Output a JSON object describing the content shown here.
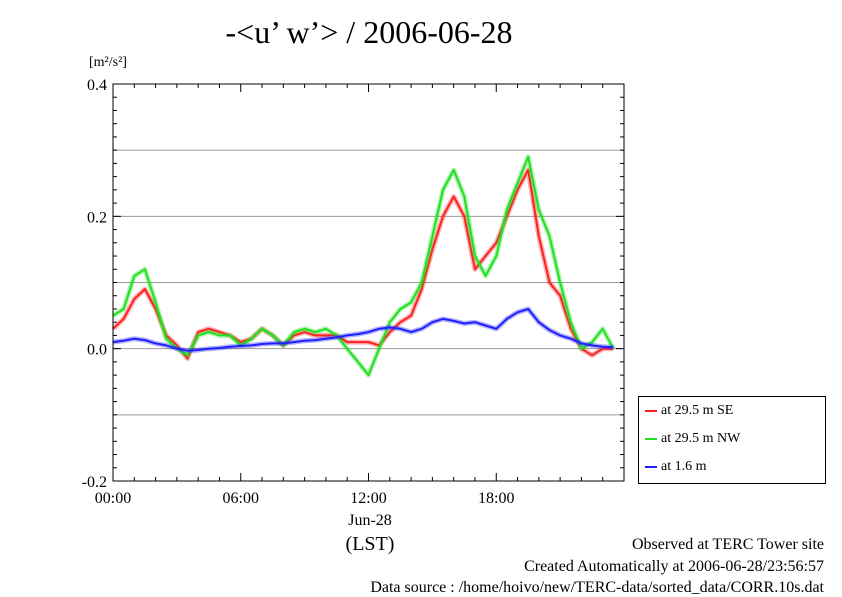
{
  "title": "-<u’ w’> / 2006-06-28",
  "unit_label": "[m²/s²]",
  "footer": {
    "line1": "Observed at TERC Tower site",
    "line2": "Created Automatically at 2006-06-28/23:56:57",
    "line3": "Data source : /home/hoivo/new/TERC-data/sorted_data/CORR.10s.dat"
  },
  "x_sublabels": {
    "date": "Jun-28",
    "tz": "(LST)"
  },
  "chart_data": {
    "type": "line",
    "title": "-<u’ w’> / 2006-06-28",
    "ylabel": "[m²/s²]",
    "xlabel": "(LST)",
    "xlim": [
      0,
      24
    ],
    "ylim": [
      -0.2,
      0.4
    ],
    "x_ticks": [
      0,
      6,
      12,
      18
    ],
    "x_tick_labels": [
      "00:00",
      "06:00",
      "12:00",
      "18:00"
    ],
    "y_ticks": [
      -0.2,
      0.0,
      0.2,
      0.4
    ],
    "y_tick_labels": [
      "-0.2",
      "0.0",
      "0.2",
      "0.4"
    ],
    "grid": "horizontal",
    "legend_position": "bottom-right outside",
    "series": [
      {
        "name": "at 29.5 m SE",
        "color": "#ff2020",
        "x": [
          0,
          0.5,
          1,
          1.5,
          2,
          2.5,
          3,
          3.5,
          4,
          4.5,
          5,
          5.5,
          6,
          6.5,
          7,
          7.5,
          8,
          8.5,
          9,
          9.5,
          10,
          10.5,
          11,
          11.5,
          12,
          12.5,
          13,
          13.5,
          14,
          14.5,
          15,
          15.5,
          16,
          16.5,
          17,
          17.5,
          18,
          18.5,
          19,
          19.5,
          20,
          20.5,
          21,
          21.5,
          22,
          22.5,
          23,
          23.5
        ],
        "y": [
          0.03,
          0.045,
          0.075,
          0.09,
          0.06,
          0.02,
          0.005,
          -0.015,
          0.025,
          0.03,
          0.025,
          0.02,
          0.01,
          0.015,
          0.03,
          0.02,
          0.005,
          0.02,
          0.025,
          0.02,
          0.02,
          0.02,
          0.01,
          0.01,
          0.01,
          0.005,
          0.025,
          0.04,
          0.05,
          0.09,
          0.15,
          0.2,
          0.23,
          0.2,
          0.12,
          0.14,
          0.16,
          0.2,
          0.24,
          0.27,
          0.17,
          0.1,
          0.08,
          0.03,
          0.0,
          -0.01,
          0.0,
          0.0
        ]
      },
      {
        "name": "at 29.5 m NW",
        "color": "#20e020",
        "x": [
          0,
          0.5,
          1,
          1.5,
          2,
          2.5,
          3,
          3.5,
          4,
          4.5,
          5,
          5.5,
          6,
          6.5,
          7,
          7.5,
          8,
          8.5,
          9,
          9.5,
          10,
          10.5,
          11,
          11.5,
          12,
          12.5,
          13,
          13.5,
          14,
          14.5,
          15,
          15.5,
          16,
          16.5,
          17,
          17.5,
          18,
          18.5,
          19,
          19.5,
          20,
          20.5,
          21,
          21.5,
          22,
          22.5,
          23,
          23.5
        ],
        "y": [
          0.05,
          0.06,
          0.11,
          0.12,
          0.07,
          0.015,
          0.0,
          -0.01,
          0.02,
          0.025,
          0.02,
          0.02,
          0.005,
          0.015,
          0.03,
          0.02,
          0.005,
          0.025,
          0.03,
          0.025,
          0.03,
          0.02,
          0.0,
          -0.02,
          -0.04,
          0.0,
          0.04,
          0.06,
          0.07,
          0.1,
          0.17,
          0.24,
          0.27,
          0.23,
          0.14,
          0.11,
          0.14,
          0.21,
          0.25,
          0.29,
          0.21,
          0.17,
          0.1,
          0.04,
          0.0,
          0.01,
          0.03,
          0.0
        ]
      },
      {
        "name": "at 1.6 m",
        "color": "#2020ff",
        "x": [
          0,
          0.5,
          1,
          1.5,
          2,
          2.5,
          3,
          3.5,
          4,
          4.5,
          5,
          5.5,
          6,
          6.5,
          7,
          7.5,
          8,
          8.5,
          9,
          9.5,
          10,
          10.5,
          11,
          11.5,
          12,
          12.5,
          13,
          13.5,
          14,
          14.5,
          15,
          15.5,
          16,
          16.5,
          17,
          17.5,
          18,
          18.5,
          19,
          19.5,
          20,
          20.5,
          21,
          21.5,
          22,
          22.5,
          23,
          23.5
        ],
        "y": [
          0.01,
          0.012,
          0.015,
          0.013,
          0.008,
          0.005,
          0.0,
          -0.003,
          -0.002,
          0.0,
          0.001,
          0.003,
          0.004,
          0.005,
          0.007,
          0.008,
          0.008,
          0.01,
          0.012,
          0.013,
          0.015,
          0.017,
          0.02,
          0.022,
          0.025,
          0.03,
          0.032,
          0.03,
          0.025,
          0.03,
          0.04,
          0.045,
          0.042,
          0.038,
          0.04,
          0.035,
          0.03,
          0.045,
          0.055,
          0.06,
          0.04,
          0.028,
          0.02,
          0.015,
          0.008,
          0.005,
          0.003,
          0.002
        ]
      }
    ]
  }
}
